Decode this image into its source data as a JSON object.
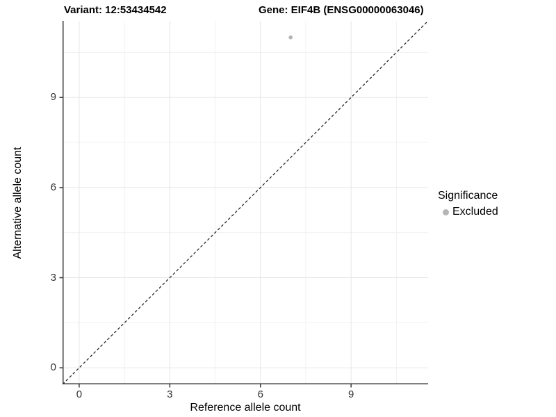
{
  "header": {
    "variant_title": "Variant: 12:53434542",
    "gene_title": "Gene: EIF4B (ENSG00000063046)"
  },
  "axes": {
    "x_label": "Reference allele count",
    "y_label": "Alternative allele count"
  },
  "legend": {
    "title": "Significance",
    "items": [
      {
        "label": "Excluded",
        "marker_icon": "circle",
        "marker_color": "#b5b5b5"
      }
    ]
  },
  "chart_data": {
    "type": "scatter",
    "title": "Variant: 12:53434542 / Gene: EIF4B (ENSG00000063046)",
    "xlabel": "Reference allele count",
    "ylabel": "Alternative allele count",
    "xlim": [
      -0.55,
      11.55
    ],
    "ylim": [
      -0.55,
      11.55
    ],
    "x_ticks": [
      0,
      3,
      6,
      9
    ],
    "y_ticks": [
      0,
      3,
      6,
      9
    ],
    "x_minor_gridlines": [
      1.5,
      4.5,
      7.5,
      10.5
    ],
    "y_minor_gridlines": [
      1.5,
      4.5,
      7.5,
      10.5
    ],
    "grid": "on",
    "legend_position": "right",
    "series": [
      {
        "name": "Excluded",
        "marker_color": "#b5b5b5",
        "points": [
          {
            "x": 7,
            "y": 11
          }
        ]
      }
    ],
    "reference_line": {
      "kind": "identity y=x",
      "style": "dashed",
      "color": "#1a1a1a"
    }
  },
  "style": {
    "background": "#ffffff",
    "grid_major_color": "#e6e6e6",
    "grid_minor_color": "#f1f1f1",
    "axis_line_color": "#3a3a3a",
    "tick_label_color": "#333333",
    "point_color": "#b5b5b5"
  }
}
